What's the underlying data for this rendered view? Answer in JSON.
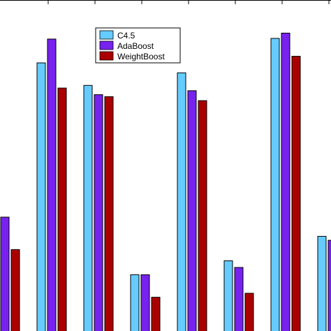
{
  "chart_data": {
    "type": "bar",
    "title": "",
    "xlabel": "",
    "ylabel": "",
    "ylim": [
      0,
      100
    ],
    "grid": false,
    "legend_position": "top-center",
    "categories": [
      "",
      "",
      "",
      "",
      "",
      "",
      "",
      ""
    ],
    "series": [
      {
        "name": "C4.5",
        "color": "#66ccff",
        "values": [
          null,
          81.0,
          74.2,
          17.0,
          78.0,
          21.2,
          88.4,
          28.6
        ]
      },
      {
        "name": "AdaBoost",
        "color": "#7722ee",
        "values": [
          34.4,
          88.2,
          71.4,
          17.0,
          72.6,
          19.2,
          90.0,
          27.4
        ]
      },
      {
        "name": "WeightBoost",
        "color": "#aa0000",
        "values": [
          24.6,
          73.4,
          70.8,
          10.2,
          69.6,
          11.4,
          83.0,
          null
        ]
      }
    ]
  }
}
